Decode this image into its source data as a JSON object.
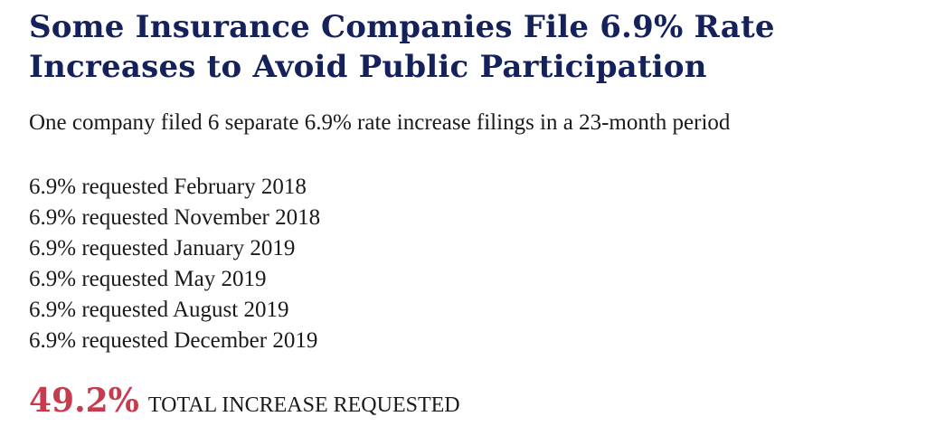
{
  "title": "Some Insurance Companies File 6.9% Rate Increases to Avoid Public Participation",
  "subtitle": "One company filed 6 separate 6.9% rate increase filings in a 23-month period",
  "filings": [
    "6.9% requested February 2018",
    "6.9% requested November 2018",
    "6.9% requested January 2019",
    "6.9% requested May 2019",
    "6.9% requested August 2019",
    "6.9% requested December 2019"
  ],
  "total": {
    "value": "49.2%",
    "label": "TOTAL INCREASE REQUESTED"
  },
  "colors": {
    "title": "#14215a",
    "body_text": "#1a1a1a",
    "total_value": "#c83a4e",
    "background": "#ffffff"
  }
}
